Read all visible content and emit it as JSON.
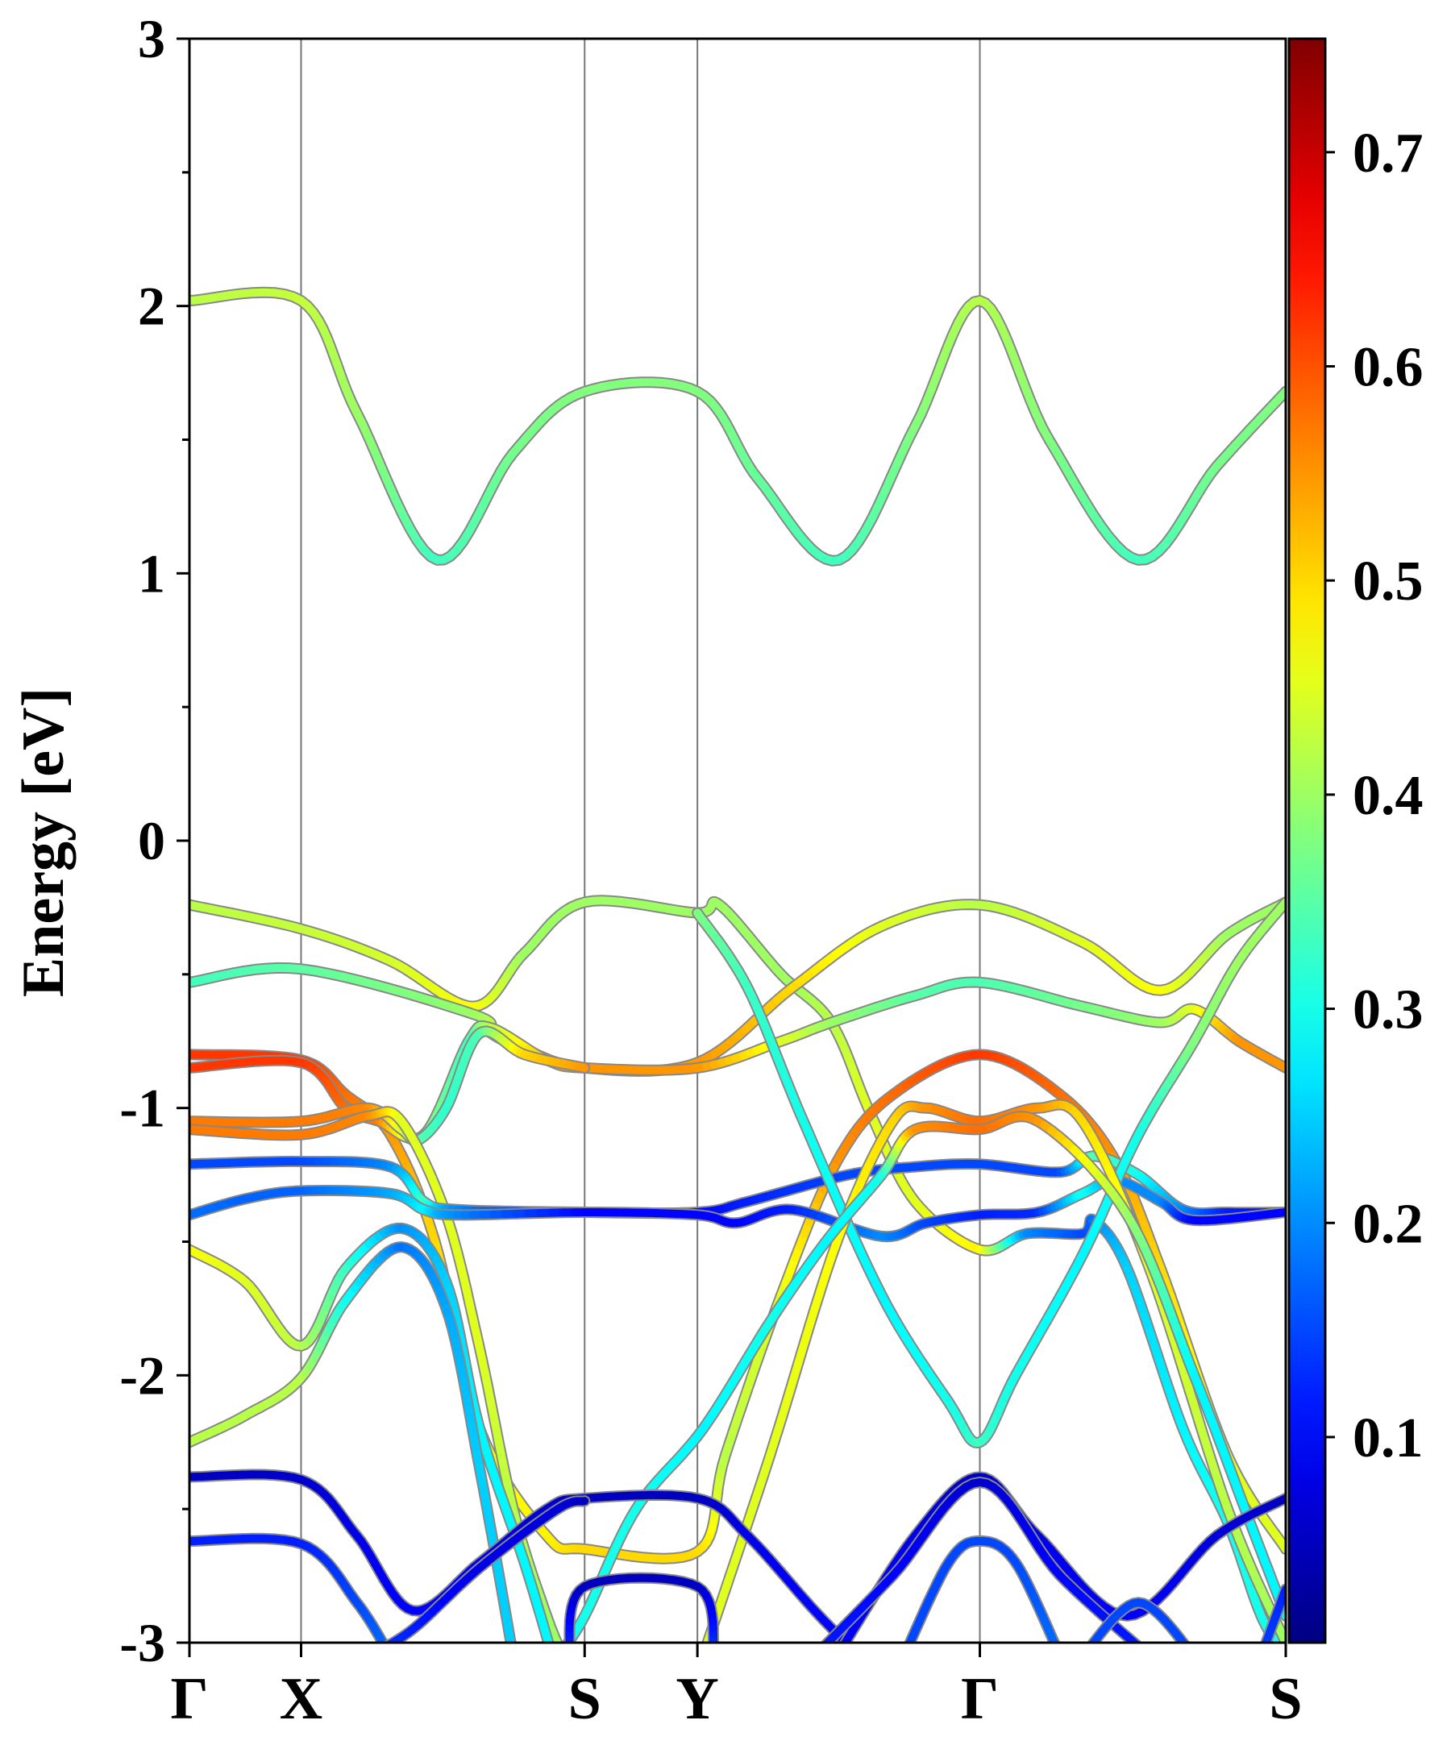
{
  "chart_data": {
    "type": "line",
    "title": "",
    "xlabel": "",
    "ylabel": "Energy [eV]",
    "ylim": [
      -3,
      3
    ],
    "yticks": [
      {
        "value": 3,
        "label": "3"
      },
      {
        "value": 2,
        "label": "2"
      },
      {
        "value": 1,
        "label": "1"
      },
      {
        "value": 0,
        "label": "0"
      },
      {
        "value": -1,
        "label": "-1"
      },
      {
        "value": -2,
        "label": "-2"
      },
      {
        "value": -3,
        "label": "-3"
      }
    ],
    "yminor_step": 0.5,
    "kpath": [
      {
        "label": "Γ",
        "k": 0
      },
      {
        "label": "X",
        "k": 1.0
      },
      {
        "label": "S",
        "k": 3.54
      },
      {
        "label": "Y",
        "k": 4.55
      },
      {
        "label": "Γ",
        "k": 7.08
      },
      {
        "label": "S",
        "k": 9.82
      }
    ],
    "colorbar": {
      "colormap": "jet",
      "range": [
        0.004,
        0.753
      ],
      "ticks": [
        {
          "value": 0.1,
          "label": "0.1"
        },
        {
          "value": 0.2,
          "label": "0.2"
        },
        {
          "value": 0.3,
          "label": "0.3"
        },
        {
          "value": 0.4,
          "label": "0.4"
        },
        {
          "value": 0.5,
          "label": "0.5"
        },
        {
          "value": 0.6,
          "label": "0.6"
        },
        {
          "value": 0.7,
          "label": "0.7"
        }
      ]
    },
    "bands_format": "[k, energy_eV, weight]",
    "bands": [
      [
        [
          0,
          2.02,
          0.42
        ],
        [
          1,
          2.02,
          0.43
        ],
        [
          1.5,
          1.6,
          0.4
        ],
        [
          2.22,
          1.05,
          0.33
        ],
        [
          2.9,
          1.45,
          0.37
        ],
        [
          3.54,
          1.68,
          0.38
        ],
        [
          4.55,
          1.68,
          0.38
        ],
        [
          5.1,
          1.35,
          0.36
        ],
        [
          5.82,
          1.05,
          0.33
        ],
        [
          6.5,
          1.55,
          0.38
        ],
        [
          7.08,
          2.02,
          0.42
        ],
        [
          7.7,
          1.5,
          0.38
        ],
        [
          8.5,
          1.05,
          0.33
        ],
        [
          9.2,
          1.4,
          0.37
        ],
        [
          9.82,
          1.68,
          0.38
        ]
      ],
      [
        [
          0,
          -0.24,
          0.42
        ],
        [
          1,
          -0.33,
          0.43
        ],
        [
          1.8,
          -0.45,
          0.44
        ],
        [
          2.55,
          -0.62,
          0.47
        ],
        [
          3.0,
          -0.42,
          0.4
        ],
        [
          3.54,
          -0.23,
          0.4
        ],
        [
          4.55,
          -0.27,
          0.4
        ],
        [
          4.75,
          -0.24,
          0.4
        ],
        [
          5.3,
          -0.5,
          0.4
        ],
        [
          5.75,
          -0.68,
          0.42
        ],
        [
          6.1,
          -1.02,
          0.45
        ],
        [
          6.5,
          -1.35,
          0.45
        ],
        [
          7.08,
          -1.53,
          0.48
        ],
        [
          7.5,
          -1.47,
          0.2
        ],
        [
          8.0,
          -1.47,
          0.15
        ],
        [
          8.1,
          -1.42,
          0.18
        ],
        [
          8.4,
          -1.6,
          0.25
        ],
        [
          8.9,
          -2.2,
          0.28
        ],
        [
          9.3,
          -2.55,
          0.3
        ],
        [
          9.6,
          -2.9,
          0.3
        ],
        [
          9.82,
          -3.05,
          0.3
        ]
      ],
      [
        [
          0,
          -0.53,
          0.33
        ],
        [
          1,
          -0.48,
          0.35
        ],
        [
          2.55,
          -0.65,
          0.4
        ],
        [
          2.7,
          -0.72,
          0.45
        ],
        [
          3.0,
          -0.78,
          0.52
        ],
        [
          3.54,
          -0.85,
          0.55
        ],
        [
          4.55,
          -0.83,
          0.55
        ],
        [
          5.4,
          -0.55,
          0.5
        ],
        [
          6.2,
          -0.32,
          0.45
        ],
        [
          7.08,
          -0.24,
          0.42
        ],
        [
          8.0,
          -0.38,
          0.45
        ],
        [
          8.7,
          -0.56,
          0.47
        ],
        [
          9.3,
          -0.35,
          0.4
        ],
        [
          9.82,
          -0.23,
          0.4
        ]
      ],
      [
        [
          0,
          -0.8,
          0.62
        ],
        [
          1,
          -0.82,
          0.62
        ],
        [
          1.4,
          -0.95,
          0.58
        ],
        [
          1.8,
          -1.1,
          0.55
        ],
        [
          2.2,
          -1.5,
          0.5
        ],
        [
          2.6,
          -2.2,
          0.47
        ],
        [
          3.2,
          -2.6,
          0.48
        ],
        [
          3.54,
          -2.65,
          0.5
        ],
        [
          4.55,
          -2.66,
          0.5
        ],
        [
          4.8,
          -2.3,
          0.42
        ],
        [
          5.3,
          -1.7,
          0.45
        ],
        [
          5.8,
          -1.2,
          0.55
        ],
        [
          6.3,
          -0.95,
          0.58
        ],
        [
          7.08,
          -0.8,
          0.62
        ],
        [
          7.8,
          -0.95,
          0.58
        ],
        [
          8.3,
          -1.2,
          0.55
        ],
        [
          8.7,
          -1.6,
          0.5
        ],
        [
          9.3,
          -2.3,
          0.45
        ],
        [
          9.82,
          -2.65,
          0.45
        ]
      ],
      [
        [
          0,
          -0.85,
          0.62
        ],
        [
          1,
          -0.83,
          0.62
        ],
        [
          1.4,
          -1.0,
          0.58
        ],
        [
          1.7,
          -1.05,
          0.57
        ],
        [
          2.1,
          -1.1,
          0.38
        ],
        [
          2.5,
          -0.75,
          0.33
        ],
        [
          2.7,
          -0.7,
          0.42
        ],
        [
          3.2,
          -0.82,
          0.52
        ],
        [
          3.54,
          -0.85,
          0.55
        ],
        [
          4.55,
          -0.85,
          0.55
        ],
        [
          5.3,
          -0.75,
          0.45
        ],
        [
          5.75,
          -0.68,
          0.4
        ],
        [
          6.5,
          -0.58,
          0.35
        ],
        [
          7.08,
          -0.53,
          0.34
        ],
        [
          8.0,
          -0.62,
          0.37
        ],
        [
          8.7,
          -0.68,
          0.4
        ],
        [
          9.0,
          -0.63,
          0.45
        ],
        [
          9.4,
          -0.75,
          0.55
        ],
        [
          9.82,
          -0.85,
          0.55
        ]
      ],
      [
        [
          0,
          -1.05,
          0.57
        ],
        [
          1,
          -1.05,
          0.57
        ],
        [
          1.6,
          -1.0,
          0.56
        ],
        [
          1.9,
          -1.08,
          0.45
        ],
        [
          2.05,
          -1.12,
          0.35
        ],
        [
          2.3,
          -1.0,
          0.32
        ],
        [
          2.6,
          -0.72,
          0.34
        ],
        [
          3.0,
          -0.8,
          0.5
        ],
        [
          3.54,
          -0.85,
          0.55
        ]
      ],
      [
        [
          0,
          -1.08,
          0.57
        ],
        [
          1,
          -1.1,
          0.57
        ],
        [
          1.6,
          -1.03,
          0.56
        ],
        [
          1.9,
          -1.05,
          0.45
        ],
        [
          2.3,
          -1.4,
          0.45
        ],
        [
          2.6,
          -1.9,
          0.45
        ],
        [
          2.9,
          -2.5,
          0.42
        ],
        [
          3.2,
          -2.9,
          0.4
        ],
        [
          3.4,
          -3.1,
          0.4
        ]
      ],
      [
        [
          0,
          -1.21,
          0.15
        ],
        [
          1,
          -1.2,
          0.15
        ],
        [
          1.8,
          -1.22,
          0.2
        ],
        [
          2.1,
          -1.35,
          0.33
        ],
        [
          2.4,
          -1.38,
          0.2
        ],
        [
          3.54,
          -1.39,
          0.1
        ],
        [
          4.55,
          -1.39,
          0.1
        ],
        [
          5.0,
          -1.35,
          0.12
        ],
        [
          5.9,
          -1.25,
          0.15
        ],
        [
          6.5,
          -1.22,
          0.15
        ],
        [
          7.08,
          -1.21,
          0.15
        ],
        [
          7.8,
          -1.24,
          0.15
        ],
        [
          8.1,
          -1.18,
          0.35
        ],
        [
          8.5,
          -1.25,
          0.3
        ],
        [
          8.9,
          -1.38,
          0.2
        ],
        [
          9.3,
          -1.39,
          0.12
        ],
        [
          9.82,
          -1.39,
          0.1
        ]
      ],
      [
        [
          0,
          -1.4,
          0.18
        ],
        [
          0.5,
          -1.34,
          0.17
        ],
        [
          1,
          -1.31,
          0.17
        ],
        [
          1.8,
          -1.32,
          0.22
        ],
        [
          2.1,
          -1.38,
          0.28
        ],
        [
          2.4,
          -1.4,
          0.2
        ],
        [
          3.54,
          -1.39,
          0.1
        ],
        [
          4.55,
          -1.4,
          0.1
        ],
        [
          4.9,
          -1.43,
          0.1
        ],
        [
          5.4,
          -1.38,
          0.12
        ],
        [
          6.2,
          -1.48,
          0.2
        ],
        [
          6.6,
          -1.43,
          0.15
        ],
        [
          7.08,
          -1.4,
          0.12
        ],
        [
          7.6,
          -1.39,
          0.13
        ],
        [
          8.0,
          -1.32,
          0.3
        ],
        [
          8.3,
          -1.27,
          0.2
        ],
        [
          8.7,
          -1.35,
          0.2
        ],
        [
          9.0,
          -1.42,
          0.1
        ],
        [
          9.82,
          -1.39,
          0.1
        ]
      ],
      [
        [
          4.55,
          -0.27,
          0.38
        ],
        [
          5.0,
          -0.55,
          0.33
        ],
        [
          5.5,
          -1.05,
          0.3
        ],
        [
          6.2,
          -1.7,
          0.28
        ],
        [
          6.8,
          -2.1,
          0.3
        ],
        [
          7.08,
          -2.25,
          0.33
        ],
        [
          7.4,
          -2.0,
          0.3
        ],
        [
          8.0,
          -1.55,
          0.28
        ],
        [
          8.5,
          -1.1,
          0.3
        ],
        [
          9.0,
          -0.75,
          0.38
        ],
        [
          9.4,
          -0.45,
          0.4
        ],
        [
          9.82,
          -0.23,
          0.4
        ]
      ],
      [
        [
          0,
          -1.53,
          0.47
        ],
        [
          0.5,
          -1.65,
          0.45
        ],
        [
          1,
          -1.89,
          0.42
        ],
        [
          1.4,
          -1.6,
          0.33
        ],
        [
          1.9,
          -1.45,
          0.2
        ],
        [
          2.3,
          -1.65,
          0.25
        ],
        [
          2.6,
          -2.2,
          0.28
        ],
        [
          3.0,
          -2.7,
          0.28
        ],
        [
          3.25,
          -3.05,
          0.28
        ]
      ],
      [
        [
          0,
          -2.25,
          0.42
        ],
        [
          0.5,
          -2.15,
          0.42
        ],
        [
          1,
          -2.01,
          0.42
        ],
        [
          1.4,
          -1.72,
          0.3
        ],
        [
          1.9,
          -1.52,
          0.18
        ],
        [
          2.3,
          -1.75,
          0.22
        ],
        [
          2.6,
          -2.35,
          0.25
        ],
        [
          2.9,
          -3.05,
          0.25
        ]
      ],
      [
        [
          4.6,
          -3.05,
          0.45
        ],
        [
          5.2,
          -2.3,
          0.45
        ],
        [
          5.8,
          -1.5,
          0.47
        ],
        [
          6.3,
          -1.05,
          0.5
        ],
        [
          6.6,
          -1.0,
          0.55
        ],
        [
          7.08,
          -1.05,
          0.58
        ],
        [
          7.6,
          -1.0,
          0.55
        ],
        [
          8.0,
          -1.05,
          0.5
        ],
        [
          8.6,
          -1.6,
          0.45
        ],
        [
          9.3,
          -2.5,
          0.42
        ],
        [
          9.82,
          -3.0,
          0.4
        ]
      ],
      [
        [
          3.3,
          -3.05,
          0.28
        ],
        [
          3.54,
          -2.9,
          0.3
        ],
        [
          4.0,
          -2.5,
          0.3
        ],
        [
          4.6,
          -2.2,
          0.28
        ],
        [
          5.2,
          -1.8,
          0.3
        ],
        [
          5.7,
          -1.5,
          0.28
        ],
        [
          6.2,
          -1.25,
          0.3
        ],
        [
          6.5,
          -1.08,
          0.55
        ],
        [
          7.08,
          -1.08,
          0.58
        ],
        [
          7.6,
          -1.05,
          0.55
        ],
        [
          8.4,
          -1.4,
          0.4
        ],
        [
          9.0,
          -2.0,
          0.28
        ],
        [
          9.5,
          -2.55,
          0.28
        ],
        [
          9.82,
          -2.9,
          0.28
        ]
      ],
      [
        [
          0,
          -2.38,
          0.05
        ],
        [
          1,
          -2.39,
          0.06
        ],
        [
          1.5,
          -2.6,
          0.08
        ],
        [
          2.0,
          -2.88,
          0.1
        ],
        [
          2.6,
          -2.7,
          0.08
        ],
        [
          3.2,
          -2.5,
          0.06
        ],
        [
          3.54,
          -2.46,
          0.05
        ],
        [
          4.55,
          -2.46,
          0.05
        ],
        [
          5.0,
          -2.6,
          0.08
        ],
        [
          5.6,
          -2.88,
          0.1
        ],
        [
          6.0,
          -3.05,
          0.1
        ]
      ],
      [
        [
          0,
          -2.62,
          0.12
        ],
        [
          1,
          -2.63,
          0.12
        ],
        [
          1.5,
          -2.85,
          0.15
        ],
        [
          1.8,
          -3.05,
          0.18
        ]
      ],
      [
        [
          1.6,
          -3.05,
          0.15
        ],
        [
          2.0,
          -2.95,
          0.12
        ],
        [
          2.6,
          -2.72,
          0.08
        ],
        [
          3.3,
          -2.5,
          0.07
        ],
        [
          3.54,
          -2.47,
          0.05
        ]
      ],
      [
        [
          3.4,
          -3.05,
          0.15
        ],
        [
          3.54,
          -2.79,
          0.05
        ],
        [
          4.55,
          -2.79,
          0.05
        ],
        [
          4.7,
          -3.05,
          0.15
        ]
      ],
      [
        [
          5.8,
          -3.05,
          0.1
        ],
        [
          6.5,
          -2.6,
          0.08
        ],
        [
          7.08,
          -2.38,
          0.05
        ],
        [
          7.6,
          -2.6,
          0.08
        ],
        [
          8.4,
          -2.9,
          0.1
        ],
        [
          9.2,
          -2.6,
          0.07
        ],
        [
          9.82,
          -2.46,
          0.05
        ]
      ],
      [
        [
          5.6,
          -3.05,
          0.12
        ],
        [
          6.3,
          -2.75,
          0.1
        ],
        [
          7.08,
          -2.4,
          0.06
        ],
        [
          7.8,
          -2.75,
          0.1
        ],
        [
          8.6,
          -3.05,
          0.12
        ]
      ],
      [
        [
          6.4,
          -3.05,
          0.15
        ],
        [
          6.8,
          -2.7,
          0.15
        ],
        [
          7.08,
          -2.62,
          0.15
        ],
        [
          7.4,
          -2.7,
          0.15
        ],
        [
          7.8,
          -3.05,
          0.18
        ]
      ],
      [
        [
          8.0,
          -3.05,
          0.15
        ],
        [
          8.5,
          -2.85,
          0.15
        ],
        [
          9.0,
          -3.05,
          0.15
        ]
      ],
      [
        [
          9.6,
          -3.05,
          0.15
        ],
        [
          9.82,
          -2.8,
          0.12
        ]
      ]
    ]
  }
}
